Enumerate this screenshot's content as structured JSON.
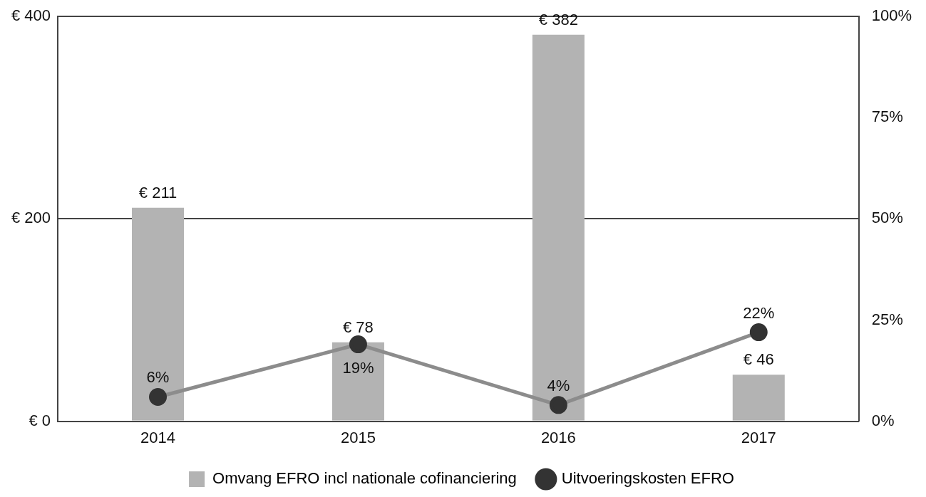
{
  "chart_data": {
    "type": "bar",
    "categories": [
      "2014",
      "2015",
      "2016",
      "2017"
    ],
    "series": [
      {
        "name": "Omvang EFRO incl nationale cofinanciering",
        "type": "bar",
        "color": "#b3b3b3",
        "values": [
          211,
          78,
          382,
          46
        ],
        "value_labels": [
          "€ 211",
          "€ 78",
          "€ 382",
          "€ 46"
        ]
      },
      {
        "name": "Uitvoeringskosten EFRO",
        "type": "line",
        "axis": "y2",
        "color": "#8c8c8c",
        "marker": "circle",
        "values": [
          6,
          19,
          4,
          22
        ],
        "value_labels": [
          "6%",
          "19%",
          "4%",
          "22%"
        ]
      }
    ],
    "ylim": [
      0,
      400
    ],
    "yticks": [
      {
        "value": 0,
        "label": "€ 0"
      },
      {
        "value": 200,
        "label": "€ 200"
      },
      {
        "value": 400,
        "label": "€ 400"
      }
    ],
    "y2lim": [
      0,
      100
    ],
    "y2ticks": [
      {
        "value": 0,
        "label": "0%"
      },
      {
        "value": 25,
        "label": "25%"
      },
      {
        "value": 50,
        "label": "50%"
      },
      {
        "value": 75,
        "label": "75%"
      },
      {
        "value": 100,
        "label": "100%"
      }
    ],
    "grid": true,
    "legend": "bottom",
    "data_labels": true
  }
}
